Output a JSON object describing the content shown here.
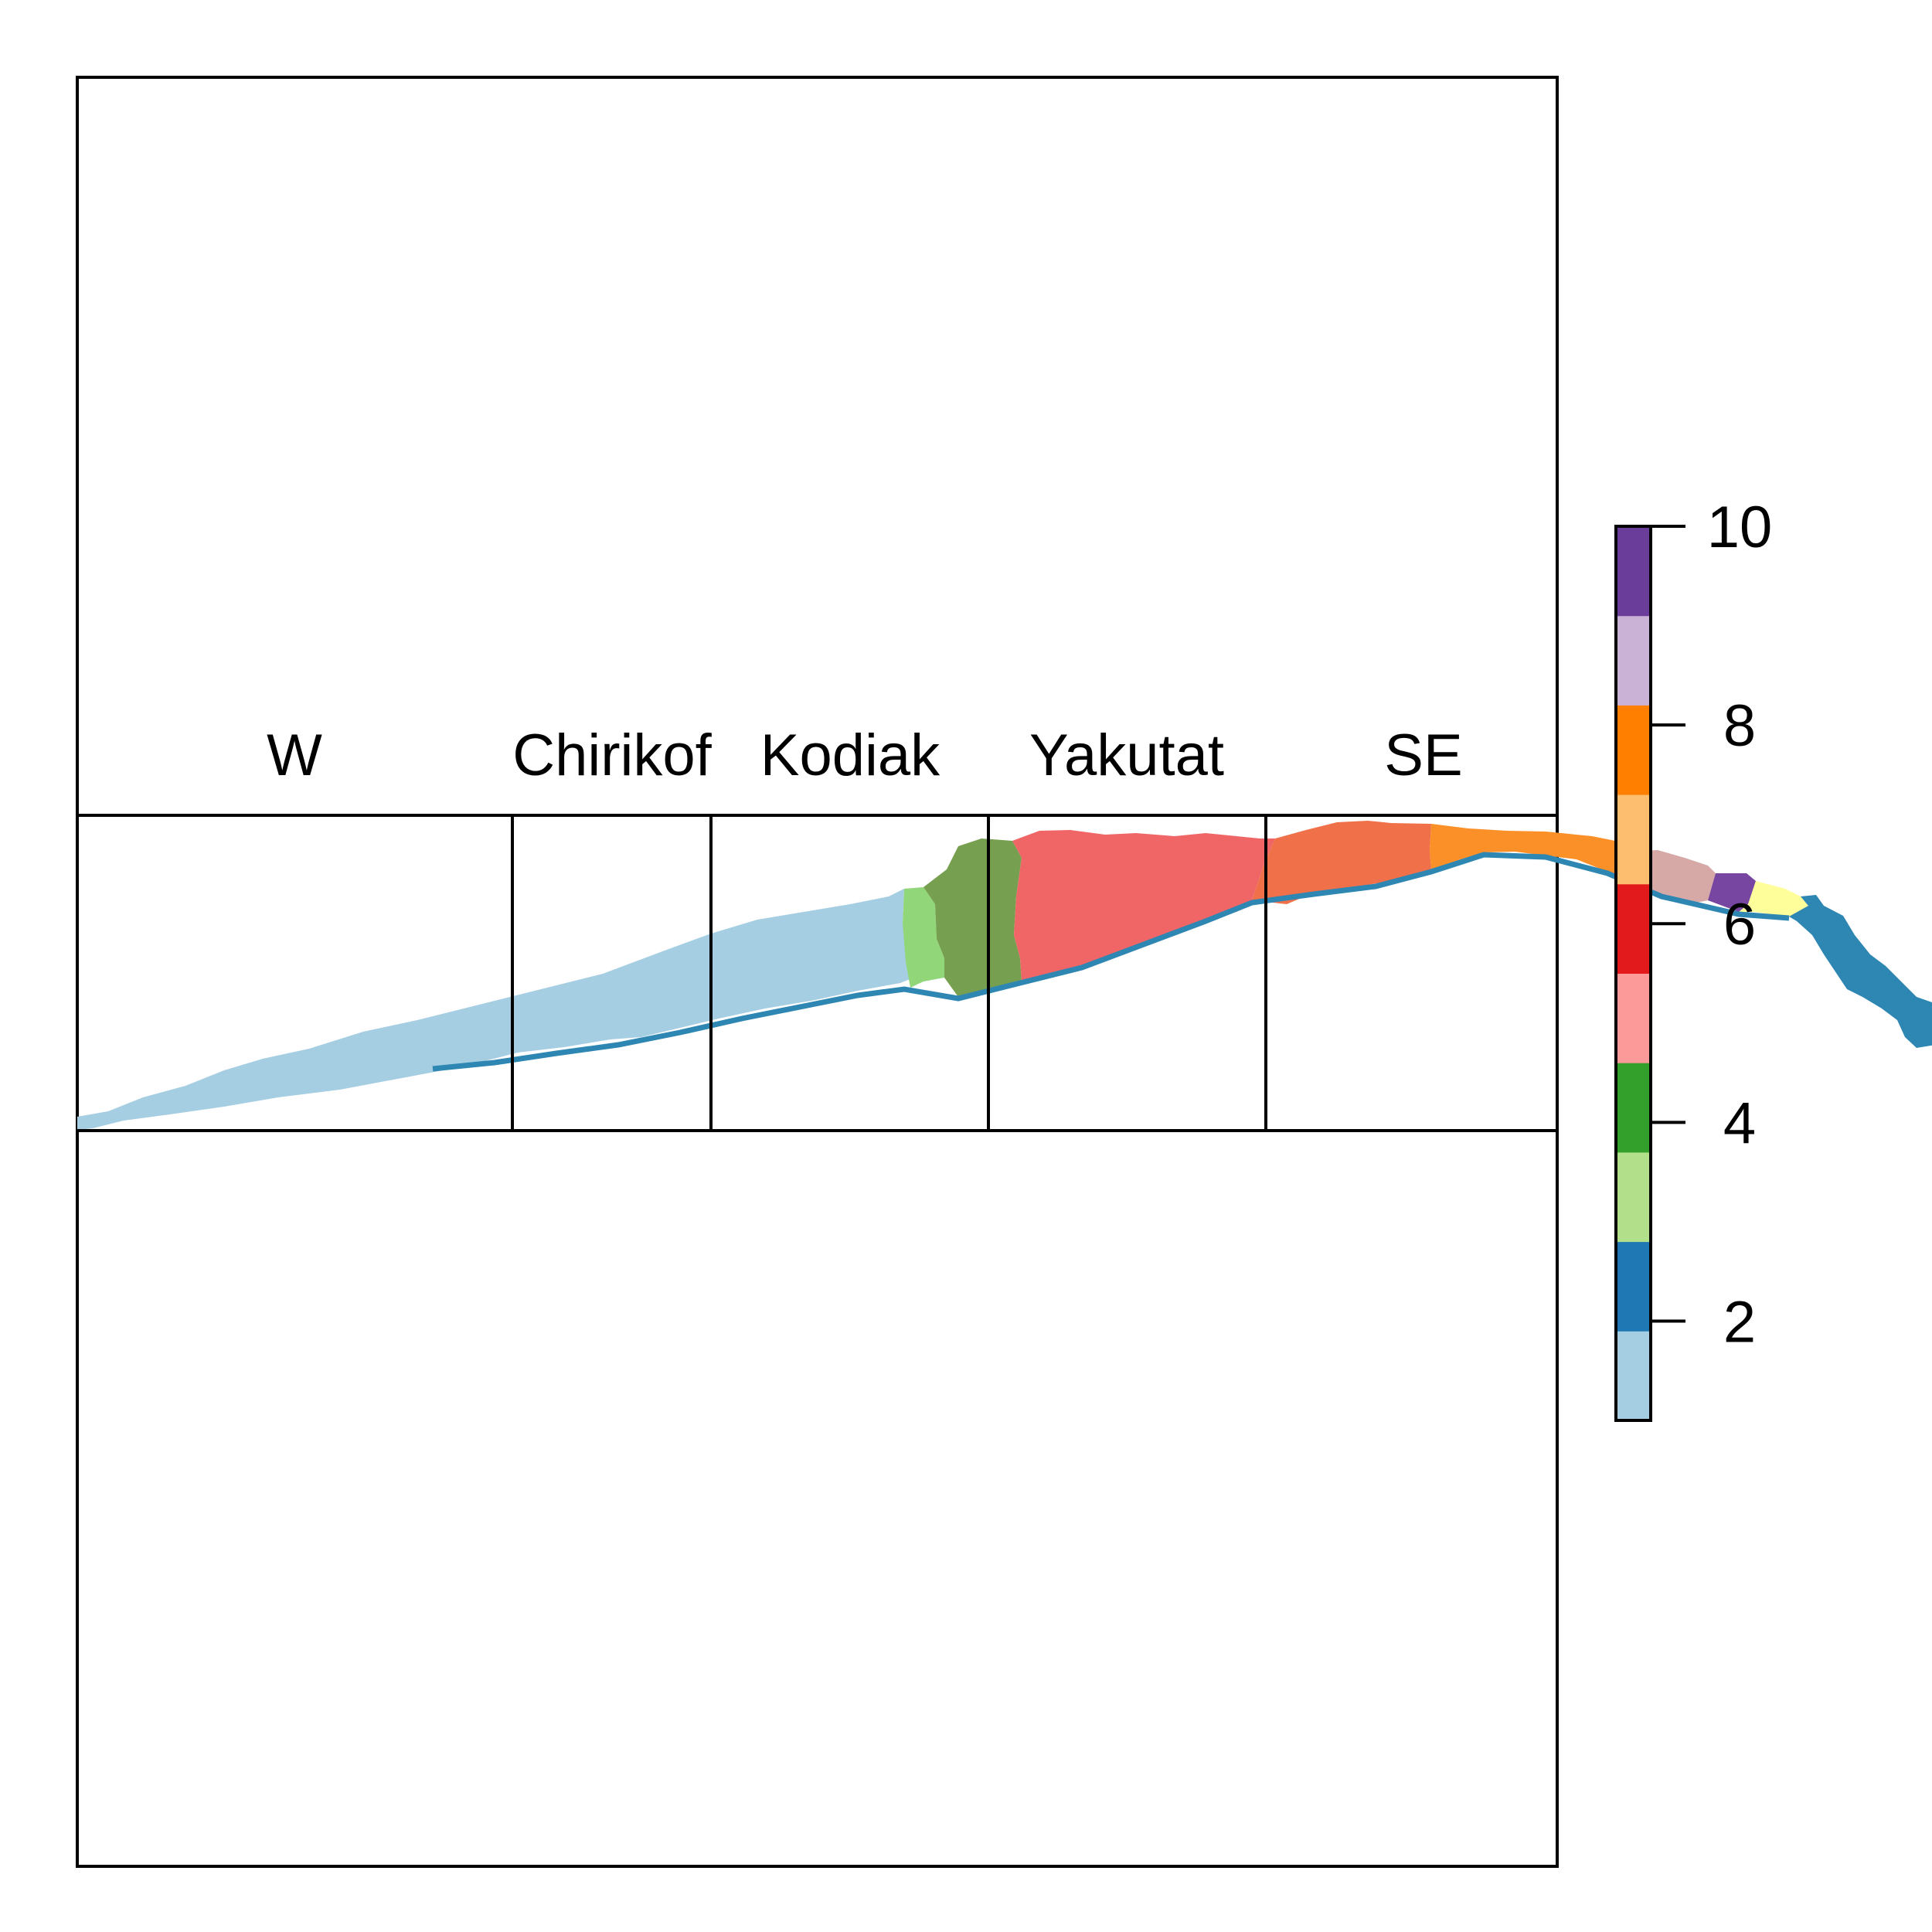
{
  "regions": [
    {
      "id": "w",
      "label": "W"
    },
    {
      "id": "chirikof",
      "label": "Chirikof"
    },
    {
      "id": "kodiak",
      "label": "Kodiak"
    },
    {
      "id": "yakutat",
      "label": "Yakutat"
    },
    {
      "id": "se",
      "label": "SE"
    }
  ],
  "legend": {
    "min": 1,
    "max": 10,
    "ticks": [
      {
        "value": 2,
        "label": "2"
      },
      {
        "value": 4,
        "label": "4"
      },
      {
        "value": 6,
        "label": "6"
      },
      {
        "value": 8,
        "label": "8"
      },
      {
        "value": 10,
        "label": "10"
      }
    ],
    "colors": [
      "#a6cee3",
      "#1f78b4",
      "#b2df8a",
      "#33a02c",
      "#fb9a99",
      "#e31a1c",
      "#fdbf6f",
      "#ff7f00",
      "#cab2d6",
      "#6a3d9a"
    ]
  },
  "zone_colors": {
    "z1": "#a6cee3",
    "z2": "#2e86b3",
    "z3": "#92d67a",
    "z4": "#76a050",
    "z5": "#f06566",
    "z6": "#ef7049",
    "z7": "#fb9029",
    "z8": "#d6a8a6",
    "z9": "#7646a0",
    "z10": "#fefe9a"
  }
}
